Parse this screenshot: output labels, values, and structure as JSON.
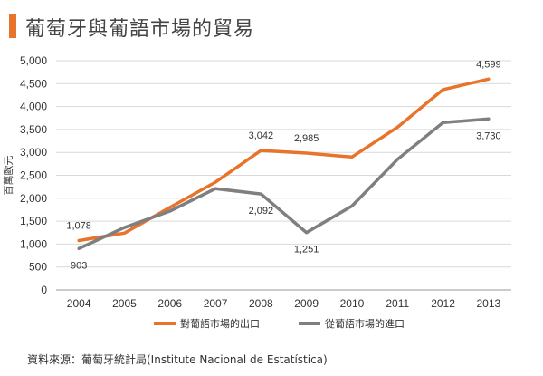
{
  "page": {
    "title": "葡萄牙與葡語市場的貿易",
    "source": "資料來源：葡萄牙統計局(Institute  Nacional  de  Estatística)"
  },
  "chart_data": {
    "type": "line",
    "title": "葡萄牙與葡語市場的貿易",
    "xlabel": "",
    "ylabel": "百萬歐元",
    "categories": [
      "2004",
      "2005",
      "2006",
      "2007",
      "2008",
      "2009",
      "2010",
      "2011",
      "2012",
      "2013"
    ],
    "ylim": [
      0,
      5000
    ],
    "yticks": [
      0,
      500,
      1000,
      1500,
      2000,
      2500,
      3000,
      3500,
      4000,
      4500,
      5000
    ],
    "ytick_labels": [
      "0",
      "500",
      "1,000",
      "1,500",
      "2,000",
      "2,500",
      "3,000",
      "3,500",
      "4,000",
      "4,500",
      "5,000"
    ],
    "grid": true,
    "legend_position": "bottom",
    "series": [
      {
        "name": "對葡語市場的出口",
        "color": "#e8742b",
        "values": [
          1078,
          1240,
          1800,
          2350,
          3042,
          2985,
          2900,
          3550,
          4370,
          4599
        ],
        "labels": [
          {
            "index": 0,
            "text": "1,078",
            "placement": "above"
          },
          {
            "index": 4,
            "text": "3,042",
            "placement": "above"
          },
          {
            "index": 5,
            "text": "2,985",
            "placement": "above"
          },
          {
            "index": 9,
            "text": "4,599",
            "placement": "above"
          }
        ]
      },
      {
        "name": "從葡語市場的進口",
        "color": "#7f7f7f",
        "values": [
          903,
          1360,
          1720,
          2210,
          2092,
          1251,
          1830,
          2850,
          3650,
          3730
        ],
        "labels": [
          {
            "index": 0,
            "text": "903",
            "placement": "below"
          },
          {
            "index": 4,
            "text": "2,092",
            "placement": "below"
          },
          {
            "index": 5,
            "text": "1,251",
            "placement": "below"
          },
          {
            "index": 9,
            "text": "3,730",
            "placement": "below"
          }
        ]
      }
    ]
  }
}
